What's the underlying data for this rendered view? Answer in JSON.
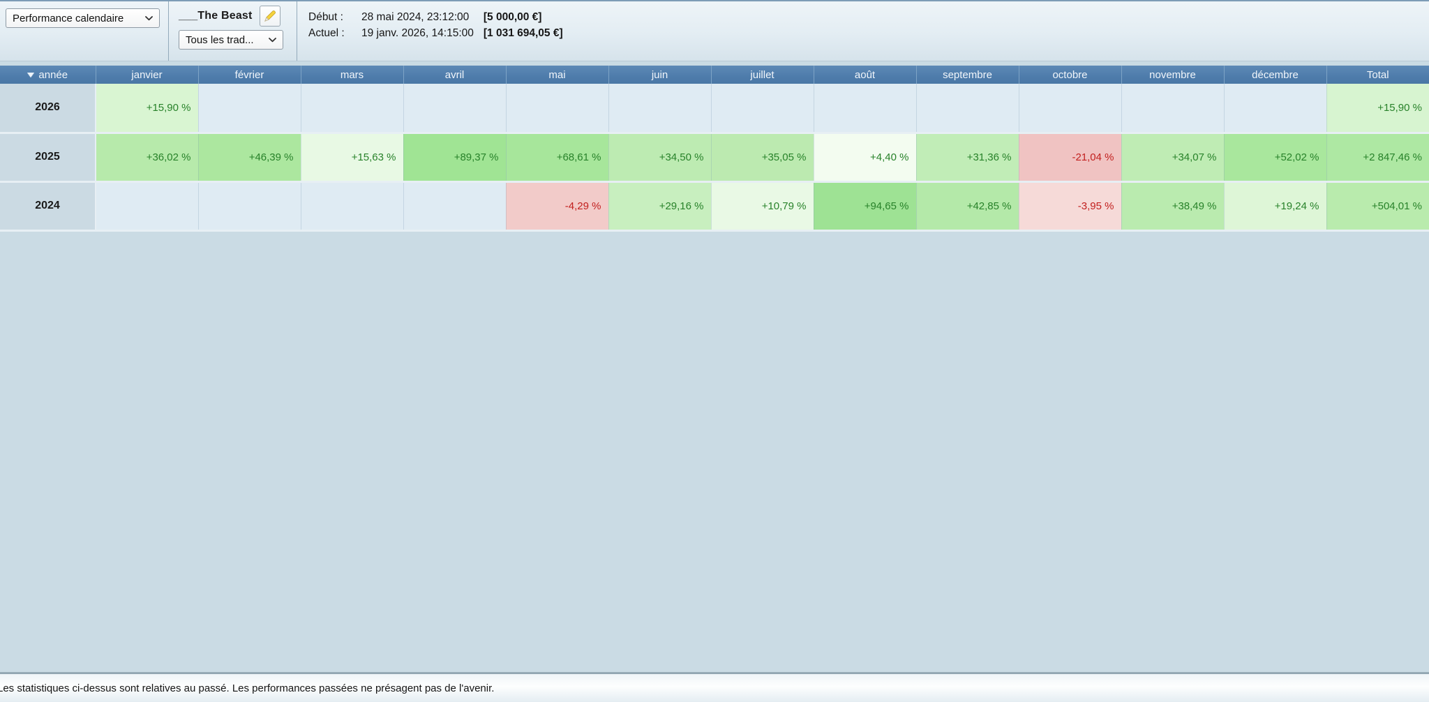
{
  "toolbar": {
    "view_select": {
      "value": "Performance calendaire"
    },
    "system_name": "___The Beast",
    "traders_select": {
      "value": "Tous les trad..."
    },
    "start_label": "Début :",
    "start_datetime": "28 mai 2024, 23:12:00",
    "start_amount": "[5 000,00 €]",
    "current_label": "Actuel :",
    "current_datetime": "19 janv. 2026, 14:15:00",
    "current_amount": "[1 031 694,05 €]"
  },
  "colors": {
    "header_blue": "#4e7cab",
    "page_background": "#cadbe4",
    "empty_cell": "#dfebf3",
    "year_cell": "#cbdae3",
    "positive_text": "#28822a",
    "negative_text": "#c2201f"
  },
  "table": {
    "columns": [
      "année",
      "janvier",
      "février",
      "mars",
      "avril",
      "mai",
      "juin",
      "juillet",
      "août",
      "septembre",
      "octobre",
      "novembre",
      "décembre",
      "Total"
    ],
    "rows": [
      {
        "year": "2026",
        "cells": [
          {
            "text": "+15,90 %",
            "bg": "#d9f5d2",
            "color": "#28822a"
          },
          {
            "text": "",
            "bg": "#dfebf3"
          },
          {
            "text": "",
            "bg": "#dfebf3"
          },
          {
            "text": "",
            "bg": "#dfebf3"
          },
          {
            "text": "",
            "bg": "#dfebf3"
          },
          {
            "text": "",
            "bg": "#dfebf3"
          },
          {
            "text": "",
            "bg": "#dfebf3"
          },
          {
            "text": "",
            "bg": "#dfebf3"
          },
          {
            "text": "",
            "bg": "#dfebf3"
          },
          {
            "text": "",
            "bg": "#dfebf3"
          },
          {
            "text": "",
            "bg": "#dfebf3"
          },
          {
            "text": "",
            "bg": "#dfebf3"
          },
          {
            "text": "+15,90 %",
            "bg": "#d7f4d0",
            "color": "#28822a"
          }
        ]
      },
      {
        "year": "2025",
        "cells": [
          {
            "text": "+36,02 %",
            "bg": "#b7eaab",
            "color": "#28822a"
          },
          {
            "text": "+46,39 %",
            "bg": "#ace79f",
            "color": "#28822a"
          },
          {
            "text": "+15,63 %",
            "bg": "#e8f9e4",
            "color": "#28822a"
          },
          {
            "text": "+89,37 %",
            "bg": "#a0e494",
            "color": "#28822a"
          },
          {
            "text": "+68,61 %",
            "bg": "#a7e69b",
            "color": "#28822a"
          },
          {
            "text": "+34,50 %",
            "bg": "#bdebb2",
            "color": "#28822a"
          },
          {
            "text": "+35,05 %",
            "bg": "#bceab0",
            "color": "#28822a"
          },
          {
            "text": "+4,40 %",
            "bg": "#f3fcf0",
            "color": "#28822a"
          },
          {
            "text": "+31,36 %",
            "bg": "#c1edb7",
            "color": "#28822a"
          },
          {
            "text": "-21,04 %",
            "bg": "#f0c3c2",
            "color": "#c2201f"
          },
          {
            "text": "+34,07 %",
            "bg": "#bfecb4",
            "color": "#28822a"
          },
          {
            "text": "+52,02 %",
            "bg": "#a9e79d",
            "color": "#28822a"
          },
          {
            "text": "+2 847,46 %",
            "bg": "#aee8a3",
            "color": "#28822a"
          }
        ]
      },
      {
        "year": "2024",
        "cells": [
          {
            "text": "",
            "bg": "#dfebf3"
          },
          {
            "text": "",
            "bg": "#dfebf3"
          },
          {
            "text": "",
            "bg": "#dfebf3"
          },
          {
            "text": "",
            "bg": "#dfebf3"
          },
          {
            "text": "-4,29 %",
            "bg": "#f2cbc9",
            "color": "#c2201f"
          },
          {
            "text": "+29,16 %",
            "bg": "#c8efbf",
            "color": "#28822a"
          },
          {
            "text": "+10,79 %",
            "bg": "#e9f9e5",
            "color": "#28822a"
          },
          {
            "text": "+94,65 %",
            "bg": "#9ee294",
            "color": "#28822a"
          },
          {
            "text": "+42,85 %",
            "bg": "#b4e9a9",
            "color": "#28822a"
          },
          {
            "text": "-3,95 %",
            "bg": "#f6dad8",
            "color": "#c2201f"
          },
          {
            "text": "+38,49 %",
            "bg": "#baebaf",
            "color": "#28822a"
          },
          {
            "text": "+19,24 %",
            "bg": "#def6d7",
            "color": "#28822a"
          },
          {
            "text": "+504,01 %",
            "bg": "#b9ebad",
            "color": "#28822a"
          }
        ]
      }
    ]
  },
  "footer": {
    "disclaimer": "Les statistiques ci-dessus sont relatives au passé. Les performances passées ne présagent pas de l'avenir."
  }
}
